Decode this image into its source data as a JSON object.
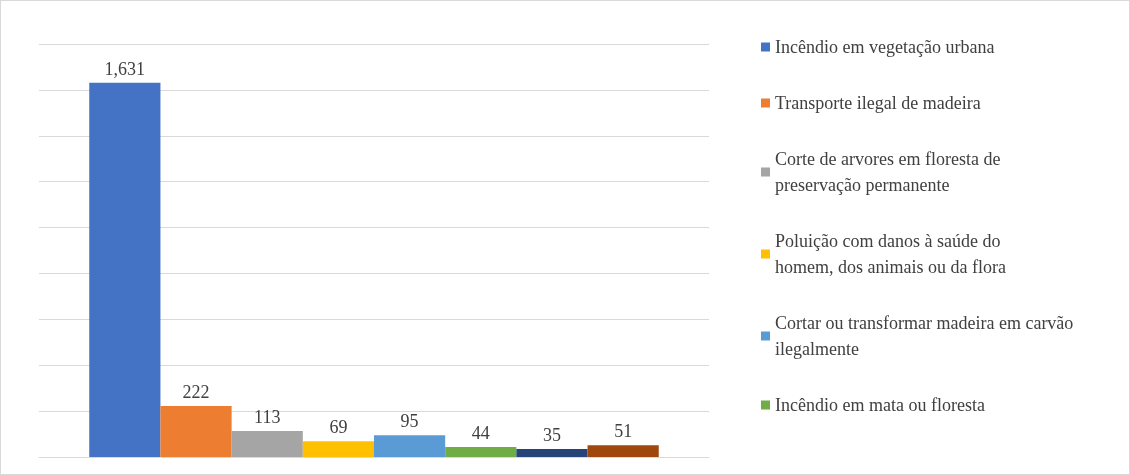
{
  "chart_data": {
    "type": "bar",
    "categories": [
      null
    ],
    "series": [
      {
        "name": "Incêndio em vegetação urbana",
        "color": "#4472c4",
        "values": [
          1631
        ],
        "value_labels": [
          "1,631"
        ]
      },
      {
        "name": "Transporte ilegal de madeira",
        "color": "#ed7d31",
        "values": [
          222
        ]
      },
      {
        "name": "Corte de arvores em floresta de preservação permanente",
        "color": "#a5a5a5",
        "values": [
          113
        ]
      },
      {
        "name": "Poluição com danos à saúde do homem, dos animais ou da flora",
        "color": "#ffc000",
        "values": [
          69
        ]
      },
      {
        "name": "Cortar ou transformar madeira em carvão ilegalmente",
        "color": "#5b9bd5",
        "values": [
          95
        ]
      },
      {
        "name": "Incêndio em mata ou floresta",
        "color": "#70ad47",
        "values": [
          44
        ]
      },
      {
        "color": "#264478",
        "values": [
          35
        ]
      },
      {
        "color": "#9e480e",
        "values": [
          51
        ]
      }
    ],
    "ylim": [
      0,
      1800
    ],
    "yticks": [
      {
        "value": 0,
        "label": null
      },
      {
        "value": 200,
        "label": null
      },
      {
        "value": 400,
        "label": null
      },
      {
        "value": 600,
        "label": null
      },
      {
        "value": 800,
        "label": null
      },
      {
        "value": 1000,
        "label": null
      },
      {
        "value": 1200,
        "label": null
      },
      {
        "value": 1400,
        "label": null
      },
      {
        "value": 1600,
        "label": null
      },
      {
        "value": 1800,
        "label": null
      }
    ],
    "grid": true,
    "legend": "right",
    "data_labels": true
  }
}
